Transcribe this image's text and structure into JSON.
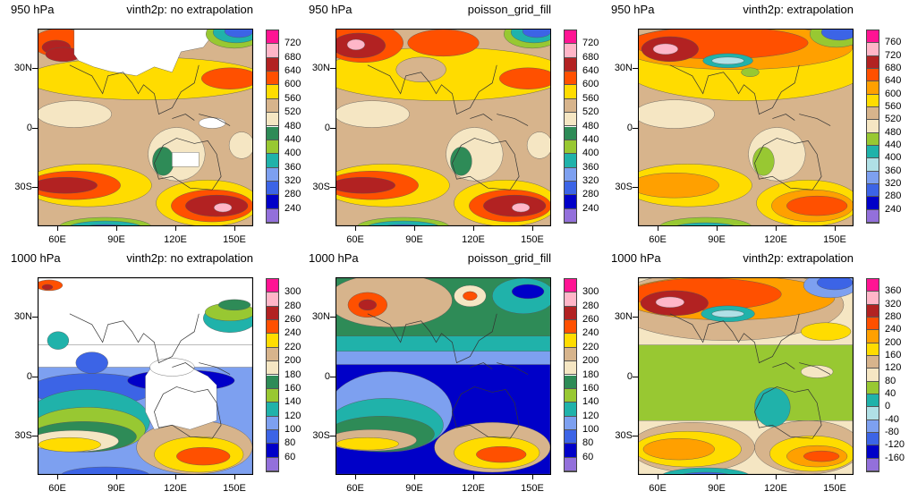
{
  "figure": {
    "x_ticks": [
      "60E",
      "90E",
      "120E",
      "150E"
    ],
    "y_ticks": [
      "30N",
      "0",
      "30S"
    ],
    "panels": [
      {
        "left_title": "950 hPa",
        "right_title": "vinth2p: no extrapolation",
        "colorbar_labels": [
          "720",
          "680",
          "640",
          "600",
          "560",
          "520",
          "480",
          "440",
          "400",
          "360",
          "320",
          "280",
          "240"
        ],
        "colorbar_colors": [
          "#ff1493",
          "#ffb6c8",
          "#b22222",
          "#ff5000",
          "#ffdc00",
          "#d7b48c",
          "#f5e6c3",
          "#2e8b57",
          "#98c832",
          "#20b2aa",
          "#7da0f0",
          "#3c64e6",
          "#0000c8",
          "#9370db"
        ]
      },
      {
        "left_title": "950 hPa",
        "right_title": "poisson_grid_fill",
        "colorbar_labels": [
          "720",
          "680",
          "640",
          "600",
          "560",
          "520",
          "480",
          "440",
          "400",
          "360",
          "320",
          "280",
          "240"
        ],
        "colorbar_colors": [
          "#ff1493",
          "#ffb6c8",
          "#b22222",
          "#ff5000",
          "#ffdc00",
          "#d7b48c",
          "#f5e6c3",
          "#2e8b57",
          "#98c832",
          "#20b2aa",
          "#7da0f0",
          "#3c64e6",
          "#0000c8",
          "#9370db"
        ]
      },
      {
        "left_title": "950 hPa",
        "right_title": "vinth2p: extrapolation",
        "colorbar_labels": [
          "760",
          "720",
          "680",
          "640",
          "600",
          "560",
          "520",
          "480",
          "440",
          "400",
          "360",
          "320",
          "280",
          "240"
        ],
        "colorbar_colors": [
          "#ff1493",
          "#ffb6c8",
          "#b22222",
          "#ff5000",
          "#ffa000",
          "#ffdc00",
          "#d7b48c",
          "#f5e6c3",
          "#98c832",
          "#20b2aa",
          "#b0e0e6",
          "#7da0f0",
          "#3c64e6",
          "#0000c8",
          "#9370db"
        ]
      },
      {
        "left_title": "1000 hPa",
        "right_title": "vinth2p: no extrapolation",
        "colorbar_labels": [
          "300",
          "280",
          "260",
          "240",
          "220",
          "200",
          "180",
          "160",
          "140",
          "120",
          "100",
          "80",
          "60"
        ],
        "colorbar_colors": [
          "#ff1493",
          "#ffb6c8",
          "#b22222",
          "#ff5000",
          "#ffdc00",
          "#d7b48c",
          "#f5e6c3",
          "#2e8b57",
          "#98c832",
          "#20b2aa",
          "#7da0f0",
          "#3c64e6",
          "#0000c8",
          "#9370db"
        ]
      },
      {
        "left_title": "1000 hPa",
        "right_title": "poisson_grid_fill",
        "colorbar_labels": [
          "300",
          "280",
          "260",
          "240",
          "220",
          "200",
          "180",
          "160",
          "140",
          "120",
          "100",
          "80",
          "60"
        ],
        "colorbar_colors": [
          "#ff1493",
          "#ffb6c8",
          "#b22222",
          "#ff5000",
          "#ffdc00",
          "#d7b48c",
          "#f5e6c3",
          "#2e8b57",
          "#98c832",
          "#20b2aa",
          "#7da0f0",
          "#3c64e6",
          "#0000c8",
          "#9370db"
        ]
      },
      {
        "left_title": "1000 hPa",
        "right_title": "vinth2p: extrapolation",
        "colorbar_labels": [
          "360",
          "320",
          "280",
          "240",
          "200",
          "160",
          "120",
          "80",
          "40",
          "0",
          "-40",
          "-80",
          "-120",
          "-160"
        ],
        "colorbar_colors": [
          "#ff1493",
          "#ffb6c8",
          "#b22222",
          "#ff5000",
          "#ffa000",
          "#ffdc00",
          "#d7b48c",
          "#f5e6c3",
          "#98c832",
          "#20b2aa",
          "#b0e0e6",
          "#7da0f0",
          "#3c64e6",
          "#0000c8",
          "#9370db"
        ]
      }
    ]
  }
}
